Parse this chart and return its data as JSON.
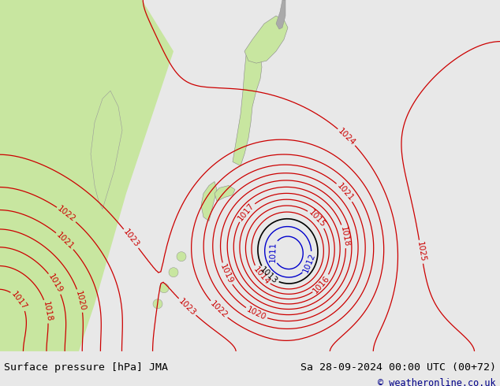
{
  "title_left": "Surface pressure [hPa] JMA",
  "title_right": "Sa 28-09-2024 00:00 UTC (00+72)",
  "copyright": "© weatheronline.co.uk",
  "bg_color": "#e8e8e8",
  "land_color_green": "#c8e6a0",
  "land_color_gray": "#c8c8c8",
  "figsize": [
    6.34,
    4.9
  ],
  "dpi": 100,
  "bottom_bar_color": "#d0d0d0",
  "label_fontsize": 7.5,
  "title_fontsize": 9.5,
  "copyright_fontsize": 8.5
}
